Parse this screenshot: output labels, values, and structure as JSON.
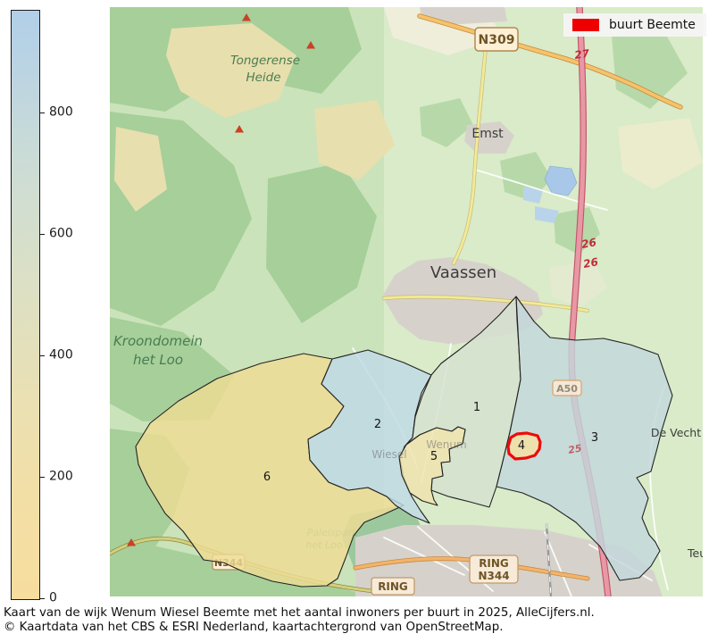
{
  "legend": {
    "label": "buurt Beemte",
    "swatch_color": "#ee0000"
  },
  "colorbar": {
    "scale_max": 970,
    "ticks": [
      {
        "value": 0,
        "label": "0"
      },
      {
        "value": 200,
        "label": "200"
      },
      {
        "value": 400,
        "label": "400"
      },
      {
        "value": 600,
        "label": "600"
      },
      {
        "value": 800,
        "label": "800"
      }
    ],
    "color_low": "#f7dd9e",
    "color_high": "#b1cfe8"
  },
  "map": {
    "regions": [
      {
        "id": "1",
        "label": "1",
        "fill": "#d5e0cf",
        "outline": "#222222",
        "highlighted": false
      },
      {
        "id": "2",
        "label": "2",
        "fill": "#bfd9e6",
        "outline": "#222222",
        "highlighted": false
      },
      {
        "id": "3",
        "label": "3",
        "fill": "#c3d7dc",
        "outline": "#222222",
        "highlighted": false
      },
      {
        "id": "4",
        "label": "4",
        "fill": "#f7e1a3",
        "outline": "#ee0a0a",
        "highlighted": true
      },
      {
        "id": "5",
        "label": "5",
        "fill": "#f0e2ae",
        "outline": "#222222",
        "highlighted": false
      },
      {
        "id": "6",
        "label": "6",
        "fill": "#eedc94",
        "outline": "#222222",
        "highlighted": false
      }
    ],
    "place_labels": {
      "tongerense_1": "Tongerense",
      "tongerense_2": "Heide",
      "emst": "Emst",
      "vaassen": "Vaassen",
      "kroondomein_1": "Kroondomein",
      "kroondomein_2": "het Loo",
      "paleispark_1": "Paleispark",
      "paleispark_2": "het Loo",
      "de_vecht": "De Vecht",
      "teuge": "Teu",
      "wenum": "Wenum",
      "wiesel": "Wiesel"
    },
    "road_badges": {
      "n309": "N309",
      "a50": "A50",
      "n344_left": "N344",
      "ring": "RING",
      "ring_n344_1": "RING",
      "ring_n344_2": "N344"
    },
    "exit_numbers": {
      "e27": "27",
      "e26a": "26",
      "e26b": "26",
      "e25": "25"
    }
  },
  "caption": {
    "line1": "Kaart van de wijk Wenum Wiesel Beemte met het aantal inwoners per buurt in 2025, AlleCijfers.nl.",
    "line2": "© Kaartdata van het CBS & ESRI Nederland, kaartachtergrond van OpenStreetMap."
  }
}
